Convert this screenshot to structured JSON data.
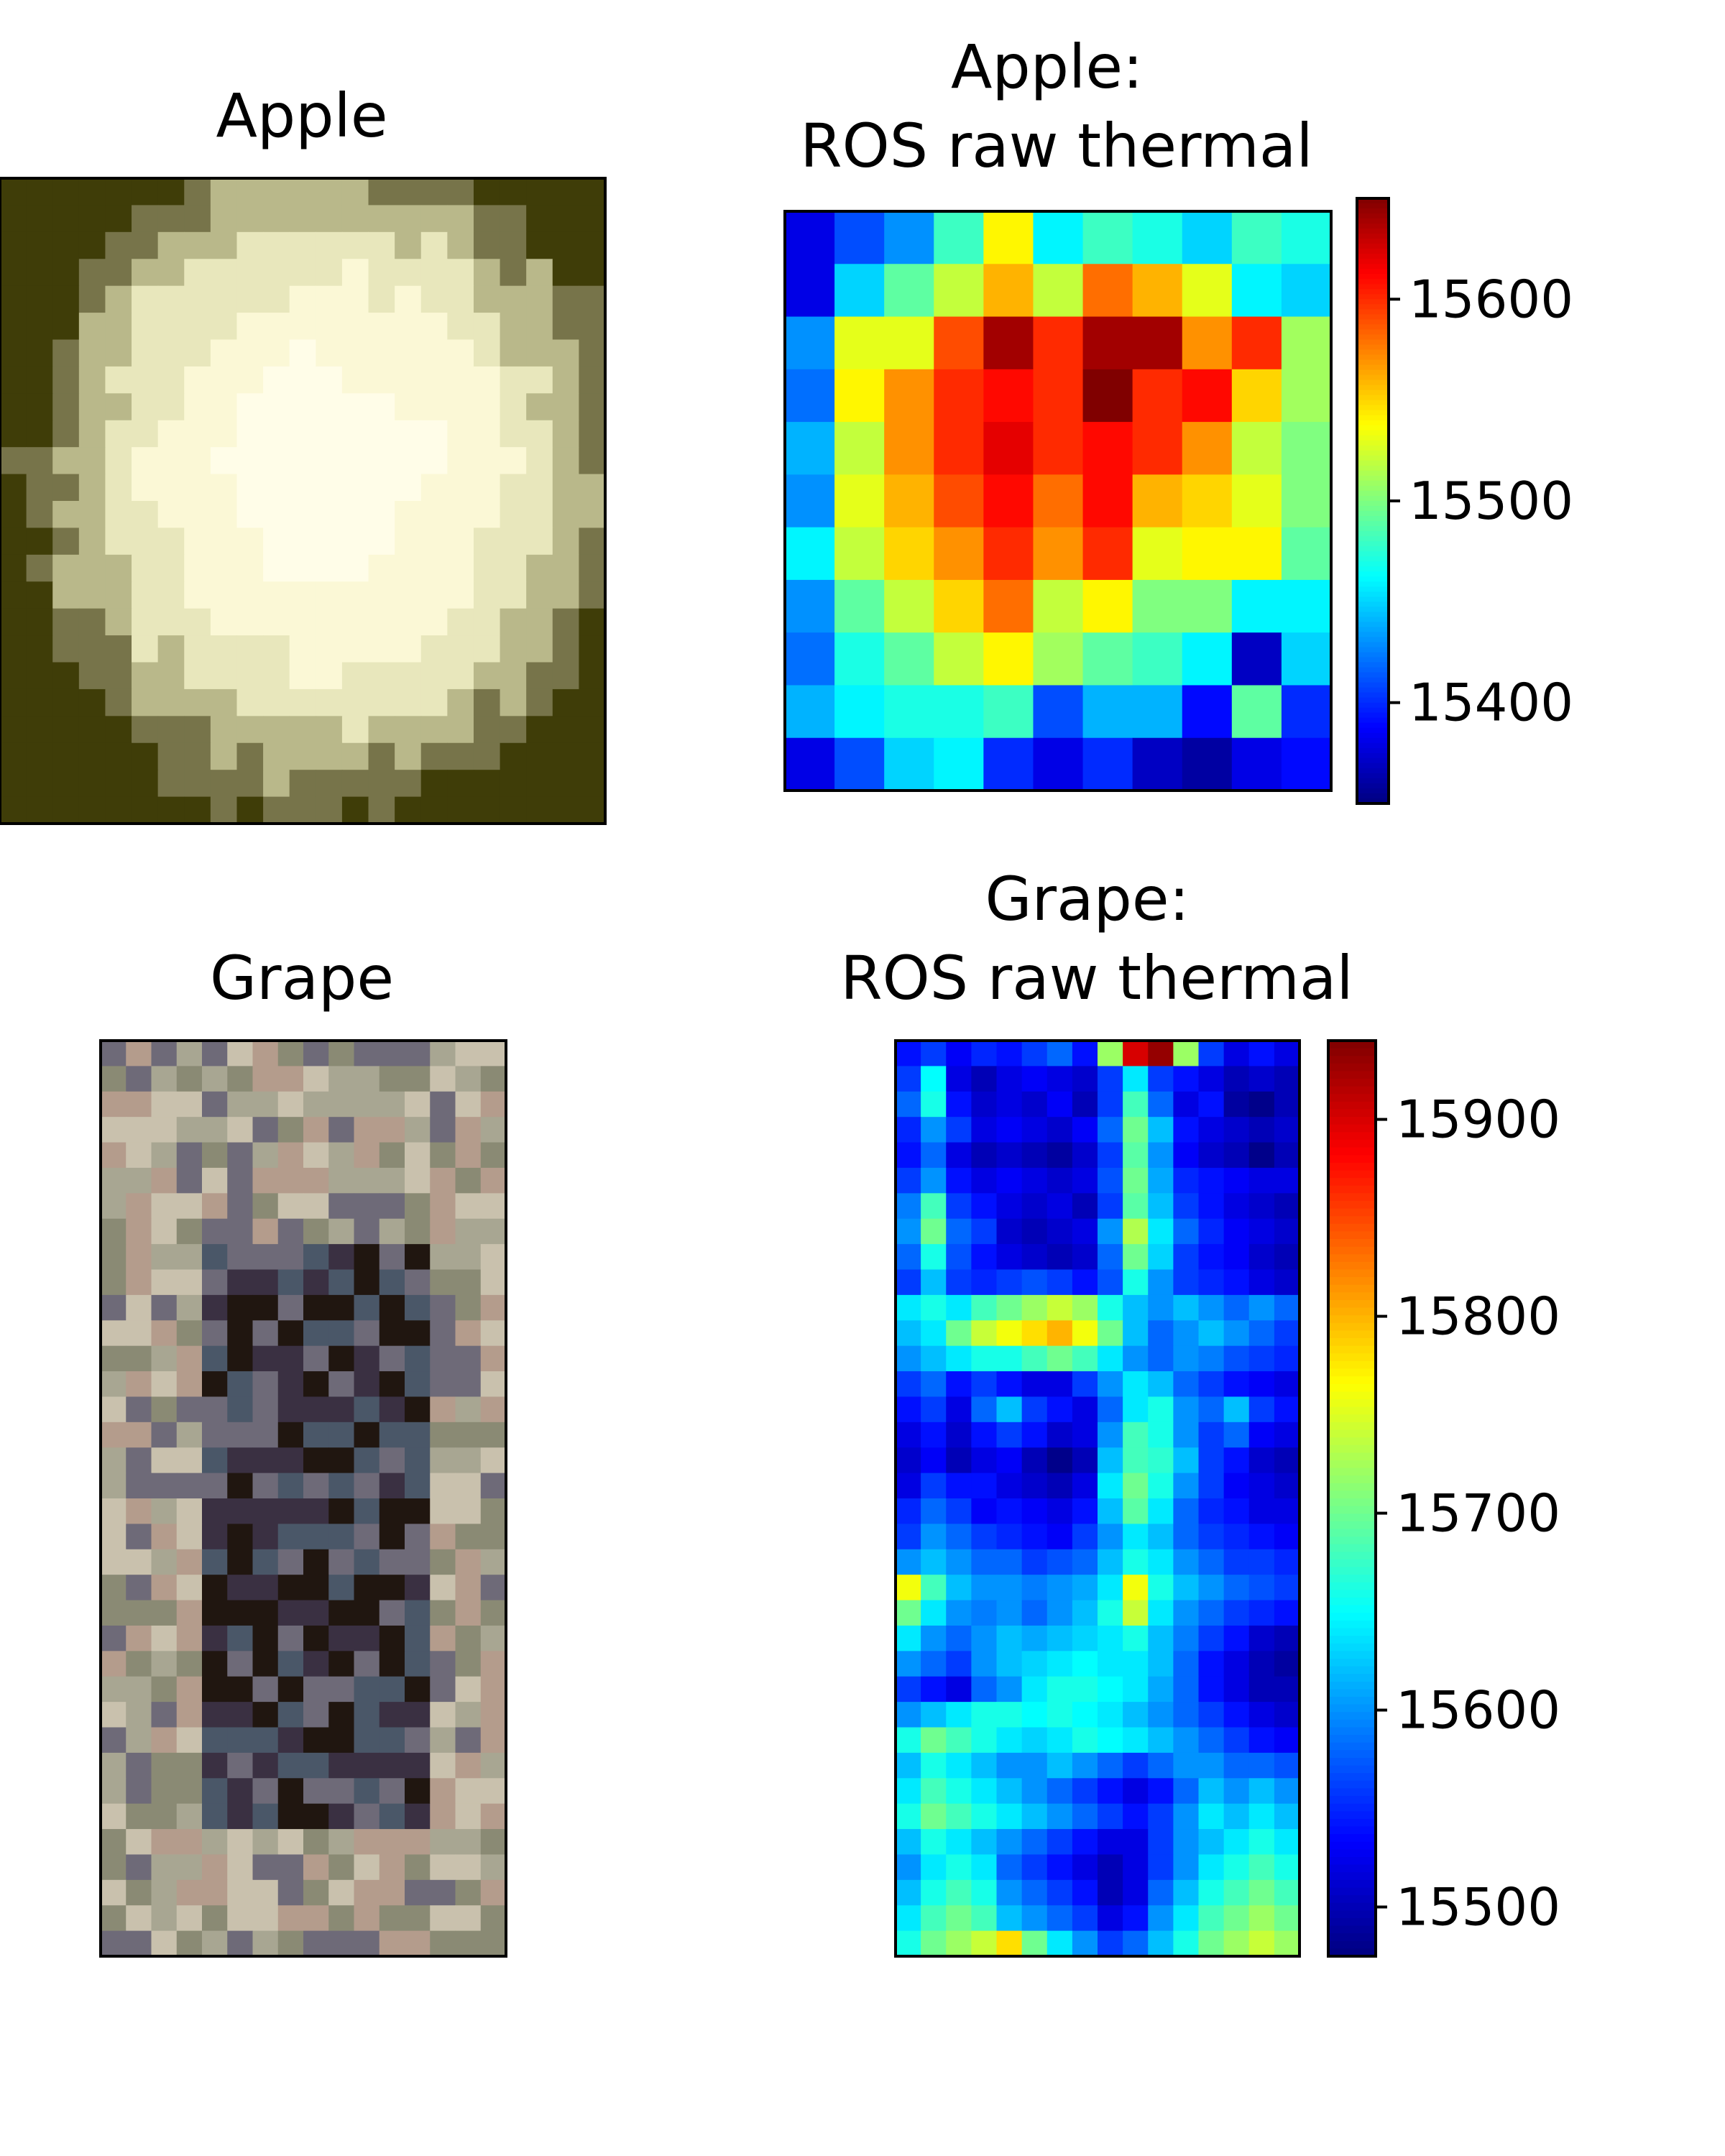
{
  "chart_data": [
    {
      "type": "heatmap",
      "panel": "photo",
      "title": "Apple",
      "rows": 24,
      "cols": 23,
      "colors": [
        "#3f3d08",
        "#77744a",
        "#b9b88a",
        "#e8e7bc",
        "#fbf8d6",
        "#fffde8"
      ]
    },
    {
      "type": "heatmap",
      "panel": "thermal",
      "title": "Apple:\nROS raw thermal",
      "title_lines": [
        "Apple:",
        "ROS raw thermal"
      ],
      "colormap": "jet",
      "rows": 11,
      "cols": 11,
      "colorbar": {
        "min": 15350,
        "max": 15650,
        "ticks": [
          15400,
          15500,
          15600
        ],
        "tick_labels": [
          "15400",
          "15500",
          "15600"
        ]
      },
      "values": [
        [
          15380,
          15410,
          15430,
          15480,
          15540,
          15460,
          15480,
          15470,
          15450,
          15480,
          15470
        ],
        [
          15380,
          15450,
          15490,
          15520,
          15560,
          15520,
          15580,
          15560,
          15530,
          15460,
          15450
        ],
        [
          15430,
          15530,
          15530,
          15590,
          15640,
          15600,
          15640,
          15640,
          15570,
          15600,
          15510
        ],
        [
          15420,
          15540,
          15570,
          15600,
          15610,
          15600,
          15650,
          15600,
          15610,
          15550,
          15510
        ],
        [
          15440,
          15520,
          15570,
          15600,
          15620,
          15600,
          15610,
          15600,
          15570,
          15520,
          15500
        ],
        [
          15430,
          15530,
          15560,
          15590,
          15610,
          15580,
          15610,
          15560,
          15550,
          15530,
          15500
        ],
        [
          15460,
          15520,
          15550,
          15570,
          15600,
          15570,
          15600,
          15530,
          15540,
          15540,
          15490
        ],
        [
          15430,
          15490,
          15520,
          15550,
          15580,
          15520,
          15540,
          15500,
          15500,
          15460,
          15460
        ],
        [
          15420,
          15470,
          15490,
          15520,
          15540,
          15510,
          15490,
          15480,
          15460,
          15370,
          15450
        ],
        [
          15440,
          15460,
          15470,
          15470,
          15480,
          15410,
          15440,
          15440,
          15390,
          15490,
          15400
        ],
        [
          15380,
          15410,
          15450,
          15460,
          15400,
          15380,
          15400,
          15370,
          15360,
          15380,
          15390
        ]
      ]
    },
    {
      "type": "heatmap",
      "panel": "photo",
      "title": "Grape",
      "rows": 36,
      "cols": 16,
      "colors": [
        "#201610",
        "#3a3042",
        "#4a5768",
        "#6e6a78",
        "#8a8a74",
        "#a8a692",
        "#c9c1ad",
        "#b49c8c"
      ]
    },
    {
      "type": "heatmap",
      "panel": "thermal",
      "title": "Grape:\nROS raw thermal",
      "title_lines": [
        "Grape:",
        "ROS raw thermal"
      ],
      "colormap": "jet",
      "rows": 36,
      "cols": 16,
      "colorbar": {
        "min": 15475,
        "max": 15940,
        "ticks": [
          15500,
          15600,
          15700,
          15800,
          15900
        ],
        "tick_labels": [
          "15500",
          "15600",
          "15700",
          "15800",
          "15900"
        ]
      },
      "values": [
        [
          15540,
          15560,
          15530,
          15550,
          15540,
          15560,
          15580,
          15540,
          15720,
          15900,
          15930,
          15720,
          15560,
          15520,
          15540,
          15520
        ],
        [
          15560,
          15650,
          15520,
          15500,
          15520,
          15530,
          15520,
          15510,
          15560,
          15640,
          15560,
          15540,
          15520,
          15500,
          15510,
          15500
        ],
        [
          15580,
          15660,
          15540,
          15510,
          15520,
          15510,
          15530,
          15500,
          15560,
          15680,
          15580,
          15520,
          15540,
          15490,
          15480,
          15500
        ],
        [
          15550,
          15600,
          15560,
          15520,
          15530,
          15520,
          15510,
          15530,
          15580,
          15700,
          15620,
          15540,
          15520,
          15510,
          15500,
          15510
        ],
        [
          15540,
          15580,
          15520,
          15500,
          15510,
          15500,
          15490,
          15510,
          15560,
          15690,
          15600,
          15530,
          15510,
          15500,
          15480,
          15500
        ],
        [
          15560,
          15600,
          15540,
          15520,
          15530,
          15520,
          15510,
          15520,
          15570,
          15700,
          15610,
          15550,
          15540,
          15530,
          15520,
          15520
        ],
        [
          15590,
          15680,
          15560,
          15540,
          15520,
          15510,
          15520,
          15500,
          15560,
          15690,
          15620,
          15560,
          15540,
          15520,
          15510,
          15500
        ],
        [
          15600,
          15700,
          15580,
          15560,
          15510,
          15500,
          15510,
          15520,
          15600,
          15730,
          15640,
          15580,
          15550,
          15530,
          15520,
          15510
        ],
        [
          15580,
          15660,
          15570,
          15540,
          15520,
          15510,
          15500,
          15510,
          15580,
          15700,
          15630,
          15560,
          15540,
          15530,
          15510,
          15500
        ],
        [
          15560,
          15620,
          15560,
          15550,
          15560,
          15570,
          15560,
          15540,
          15570,
          15660,
          15600,
          15560,
          15550,
          15540,
          15520,
          15510
        ],
        [
          15640,
          15660,
          15640,
          15680,
          15700,
          15720,
          15740,
          15720,
          15660,
          15620,
          15600,
          15620,
          15600,
          15580,
          15600,
          15580
        ],
        [
          15620,
          15640,
          15700,
          15740,
          15760,
          15780,
          15800,
          15760,
          15700,
          15620,
          15580,
          15600,
          15620,
          15600,
          15580,
          15560
        ],
        [
          15600,
          15620,
          15640,
          15660,
          15660,
          15680,
          15700,
          15680,
          15640,
          15600,
          15580,
          15600,
          15590,
          15570,
          15560,
          15550
        ],
        [
          15560,
          15580,
          15540,
          15560,
          15540,
          15520,
          15520,
          15560,
          15600,
          15640,
          15620,
          15580,
          15560,
          15540,
          15530,
          15520
        ],
        [
          15540,
          15560,
          15520,
          15580,
          15620,
          15560,
          15540,
          15520,
          15580,
          15640,
          15660,
          15600,
          15580,
          15620,
          15560,
          15540
        ],
        [
          15520,
          15540,
          15510,
          15540,
          15560,
          15540,
          15510,
          15520,
          15600,
          15680,
          15660,
          15600,
          15560,
          15580,
          15530,
          15520
        ],
        [
          15510,
          15530,
          15500,
          15520,
          15530,
          15500,
          15480,
          15500,
          15620,
          15680,
          15670,
          15620,
          15560,
          15540,
          15510,
          15500
        ],
        [
          15520,
          15560,
          15540,
          15540,
          15520,
          15510,
          15500,
          15520,
          15640,
          15700,
          15660,
          15600,
          15560,
          15530,
          15520,
          15510
        ],
        [
          15550,
          15580,
          15560,
          15530,
          15540,
          15530,
          15520,
          15540,
          15620,
          15690,
          15640,
          15580,
          15550,
          15540,
          15520,
          15520
        ],
        [
          15560,
          15600,
          15580,
          15560,
          15550,
          15540,
          15530,
          15560,
          15600,
          15640,
          15620,
          15580,
          15560,
          15550,
          15540,
          15530
        ],
        [
          15600,
          15620,
          15600,
          15580,
          15580,
          15560,
          15570,
          15580,
          15620,
          15660,
          15640,
          15600,
          15580,
          15560,
          15560,
          15550
        ],
        [
          15760,
          15680,
          15620,
          15600,
          15600,
          15590,
          15600,
          15610,
          15640,
          15760,
          15660,
          15620,
          15600,
          15580,
          15570,
          15560
        ],
        [
          15700,
          15640,
          15600,
          15590,
          15600,
          15580,
          15600,
          15620,
          15660,
          15740,
          15640,
          15600,
          15580,
          15560,
          15550,
          15540
        ],
        [
          15640,
          15600,
          15580,
          15600,
          15620,
          15610,
          15620,
          15630,
          15640,
          15660,
          15620,
          15590,
          15560,
          15540,
          15510,
          15500
        ],
        [
          15600,
          15580,
          15560,
          15600,
          15620,
          15630,
          15640,
          15650,
          15640,
          15640,
          15620,
          15580,
          15540,
          15520,
          15500,
          15490
        ],
        [
          15560,
          15540,
          15520,
          15580,
          15600,
          15640,
          15660,
          15660,
          15650,
          15640,
          15610,
          15580,
          15540,
          15520,
          15500,
          15500
        ],
        [
          15600,
          15620,
          15640,
          15660,
          15660,
          15650,
          15660,
          15650,
          15640,
          15620,
          15600,
          15580,
          15560,
          15540,
          15520,
          15510
        ],
        [
          15660,
          15700,
          15680,
          15660,
          15640,
          15630,
          15640,
          15660,
          15650,
          15640,
          15620,
          15600,
          15580,
          15560,
          15540,
          15530
        ],
        [
          15620,
          15660,
          15640,
          15620,
          15600,
          15600,
          15620,
          15600,
          15580,
          15560,
          15580,
          15600,
          15600,
          15580,
          15580,
          15570
        ],
        [
          15640,
          15680,
          15660,
          15640,
          15620,
          15600,
          15580,
          15560,
          15540,
          15520,
          15540,
          15580,
          15620,
          15600,
          15620,
          15600
        ],
        [
          15660,
          15700,
          15680,
          15660,
          15640,
          15620,
          15600,
          15580,
          15560,
          15540,
          15560,
          15600,
          15640,
          15620,
          15640,
          15620
        ],
        [
          15620,
          15660,
          15640,
          15620,
          15600,
          15580,
          15560,
          15540,
          15520,
          15520,
          15560,
          15600,
          15620,
          15640,
          15660,
          15640
        ],
        [
          15600,
          15640,
          15660,
          15640,
          15580,
          15560,
          15540,
          15520,
          15500,
          15520,
          15560,
          15600,
          15640,
          15660,
          15680,
          15660
        ],
        [
          15620,
          15660,
          15680,
          15660,
          15600,
          15580,
          15560,
          15540,
          15500,
          15520,
          15580,
          15620,
          15660,
          15680,
          15700,
          15680
        ],
        [
          15640,
          15680,
          15700,
          15680,
          15620,
          15600,
          15580,
          15560,
          15520,
          15540,
          15600,
          15640,
          15680,
          15700,
          15720,
          15700
        ],
        [
          15660,
          15700,
          15720,
          15740,
          15780,
          15700,
          15640,
          15600,
          15560,
          15580,
          15620,
          15660,
          15700,
          15720,
          15740,
          15720
        ]
      ]
    }
  ]
}
